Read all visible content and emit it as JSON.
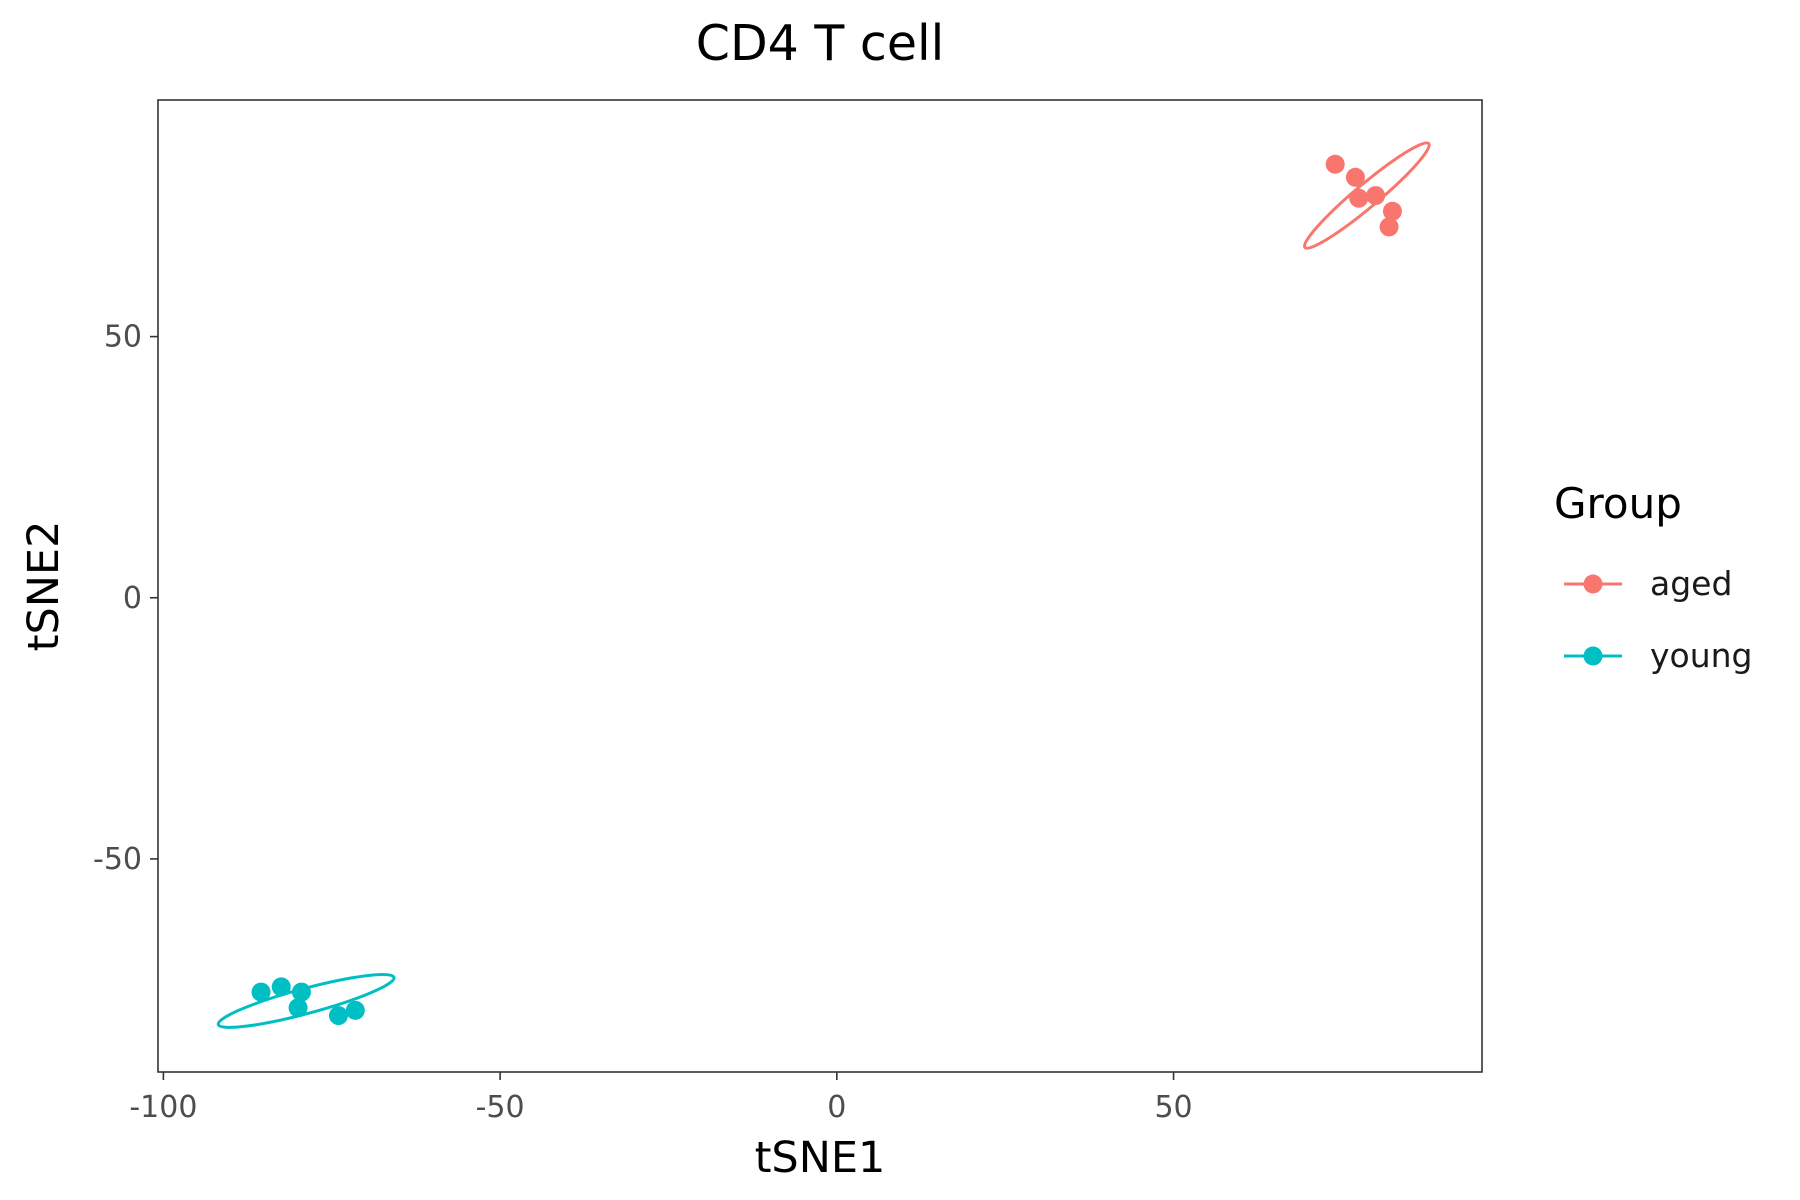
{
  "chart_data": {
    "type": "scatter",
    "title": "CD4 T cell",
    "xlabel": "tSNE1",
    "ylabel": "tSNE2",
    "xlim": [
      -100.8,
      95.8
    ],
    "ylim": [
      -90.8,
      95.3
    ],
    "xticks": [
      -100,
      -50,
      0,
      50
    ],
    "xtick_labels": [
      "-100",
      "-50",
      "0",
      "50"
    ],
    "yticks": [
      50,
      0,
      -50
    ],
    "ytick_labels": [
      "50",
      "0",
      "-50"
    ],
    "grid": false,
    "legend": {
      "title": "Group",
      "position": "right"
    },
    "series": [
      {
        "name": "aged",
        "color": "#F8766D",
        "points": [
          {
            "x": 74.0,
            "y": 83.0
          },
          {
            "x": 77.0,
            "y": 80.5
          },
          {
            "x": 80.0,
            "y": 77.0
          },
          {
            "x": 77.5,
            "y": 76.5
          },
          {
            "x": 82.5,
            "y": 74.0
          },
          {
            "x": 82.0,
            "y": 71.0
          }
        ],
        "ellipse": {
          "cx": 78.7,
          "cy": 77.0,
          "rx": 12.0,
          "ry": 2.2,
          "angle_deg": -40
        }
      },
      {
        "name": "young",
        "color": "#00BFC4",
        "points": [
          {
            "x": -85.5,
            "y": -75.5
          },
          {
            "x": -82.5,
            "y": -74.5
          },
          {
            "x": -79.5,
            "y": -75.5
          },
          {
            "x": -80.0,
            "y": -78.5
          },
          {
            "x": -74.0,
            "y": -80.0
          },
          {
            "x": -71.5,
            "y": -79.0
          }
        ],
        "ellipse": {
          "cx": -78.8,
          "cy": -77.2,
          "rx": 13.5,
          "ry": 2.4,
          "angle_deg": -15
        }
      }
    ]
  }
}
